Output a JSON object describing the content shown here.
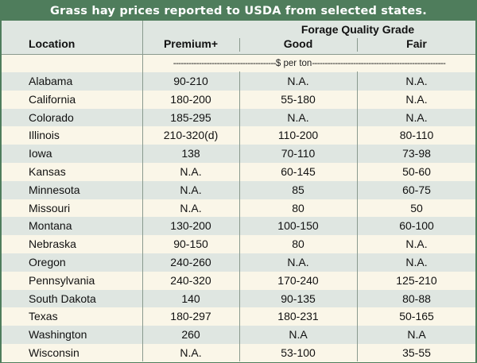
{
  "title": "Grass hay prices reported to USDA from selected states.",
  "header": {
    "location": "Location",
    "group": "Forage Quality Grade",
    "premium": "Premium+",
    "good": "Good",
    "fair": "Fair"
  },
  "unit_label": "$ per ton",
  "rows": [
    {
      "location": "Alabama",
      "premium": "90-210",
      "good": "N.A.",
      "fair": "N.A."
    },
    {
      "location": "California",
      "premium": "180-200",
      "good": "55-180",
      "fair": "N.A."
    },
    {
      "location": "Colorado",
      "premium": "185-295",
      "good": "N.A.",
      "fair": "N.A."
    },
    {
      "location": "Illinois",
      "premium": "210-320(d)",
      "good": "110-200",
      "fair": "80-110"
    },
    {
      "location": "Iowa",
      "premium": "138",
      "good": "70-110",
      "fair": "73-98"
    },
    {
      "location": "Kansas",
      "premium": "N.A.",
      "good": "60-145",
      "fair": "50-60"
    },
    {
      "location": "Minnesota",
      "premium": "N.A.",
      "good": "85",
      "fair": "60-75"
    },
    {
      "location": "Missouri",
      "premium": "N.A.",
      "good": "80",
      "fair": "50"
    },
    {
      "location": "Montana",
      "premium": "130-200",
      "good": "100-150",
      "fair": "60-100"
    },
    {
      "location": "Nebraska",
      "premium": "90-150",
      "good": "80",
      "fair": "N.A."
    },
    {
      "location": "Oregon",
      "premium": "240-260",
      "good": "N.A.",
      "fair": "N.A."
    },
    {
      "location": "Pennsylvania",
      "premium": "240-320",
      "good": "170-240",
      "fair": "125-210"
    },
    {
      "location": "South Dakota",
      "premium": "140",
      "good": "90-135",
      "fair": "80-88"
    },
    {
      "location": "Texas",
      "premium": "180-297",
      "good": "180-231",
      "fair": "50-165"
    },
    {
      "location": "Washington",
      "premium": "260",
      "good": "N.A",
      "fair": "N.A"
    },
    {
      "location": "Wisconsin",
      "premium": "N.A.",
      "good": "53-100",
      "fair": "35-55"
    }
  ],
  "colors": {
    "banner": "#4f7d5c",
    "shade": "#dfe6e1",
    "paper": "#faf6e8",
    "rule": "#8a9a8e"
  }
}
